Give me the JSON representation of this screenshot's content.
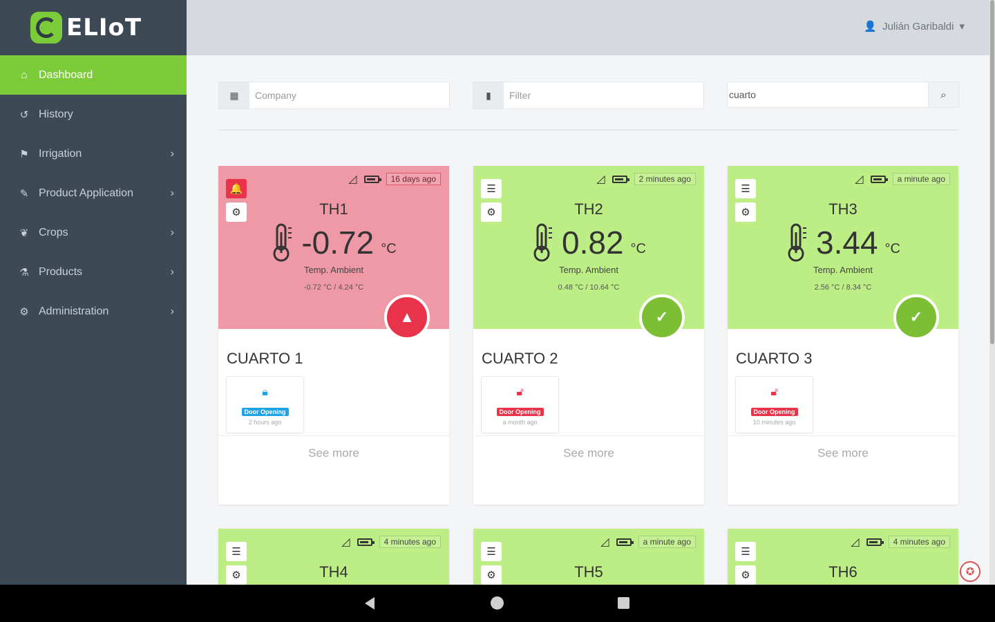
{
  "app": {
    "name": "ELIoT",
    "brand_color": "#7ccc3a"
  },
  "sidebar": {
    "items": [
      {
        "label": "Dashboard",
        "icon": "home-icon",
        "active": true,
        "has_submenu": false
      },
      {
        "label": "History",
        "icon": "history-icon",
        "active": false,
        "has_submenu": false
      },
      {
        "label": "Irrigation",
        "icon": "flag-icon",
        "active": false,
        "has_submenu": true
      },
      {
        "label": "Product Application",
        "icon": "spray-icon",
        "active": false,
        "has_submenu": true
      },
      {
        "label": "Crops",
        "icon": "leaf-icon",
        "active": false,
        "has_submenu": true
      },
      {
        "label": "Products",
        "icon": "flask-icon",
        "active": false,
        "has_submenu": true
      },
      {
        "label": "Administration",
        "icon": "gear-icon",
        "active": false,
        "has_submenu": true
      }
    ]
  },
  "header": {
    "user_name": "Julián Garibaldi"
  },
  "filters": {
    "company_placeholder": "Company",
    "filter_placeholder": "Filter",
    "search_value": "cuarto"
  },
  "cards": [
    {
      "sensor": "TH1",
      "value": "-0.72",
      "unit": "°C",
      "label": "Temp. Ambient",
      "range": "-0.72 °C / 4.24 °C",
      "time": "16 days ago",
      "state": "alert",
      "room": "CUARTO 1",
      "door_locked": true,
      "door_label": "Door Opening",
      "door_time": "2 hours ago",
      "see_more": "See more"
    },
    {
      "sensor": "TH2",
      "value": "0.82",
      "unit": "°C",
      "label": "Temp. Ambient",
      "range": "0.48 °C / 10.64 °C",
      "time": "2 minutes ago",
      "state": "ok",
      "room": "CUARTO 2",
      "door_locked": false,
      "door_label": "Door Opening",
      "door_time": "a month ago",
      "see_more": "See more"
    },
    {
      "sensor": "TH3",
      "value": "3.44",
      "unit": "°C",
      "label": "Temp. Ambient",
      "range": "2.56 °C / 8.34 °C",
      "time": "a minute ago",
      "state": "ok",
      "room": "CUARTO 3",
      "door_locked": false,
      "door_label": "Door Opening",
      "door_time": "10 minutes ago",
      "see_more": "See more"
    }
  ],
  "cards_row2": [
    {
      "sensor": "TH4",
      "time": "4 minutes ago"
    },
    {
      "sensor": "TH5",
      "time": "a minute ago"
    },
    {
      "sensor": "TH6",
      "time": "4 minutes ago"
    }
  ],
  "colors": {
    "ok_bg": "#bdee86",
    "alert_bg": "#ef99a6",
    "alert": "#e8334a",
    "ok": "#7cbf35",
    "locked": "#1fa3e8"
  }
}
